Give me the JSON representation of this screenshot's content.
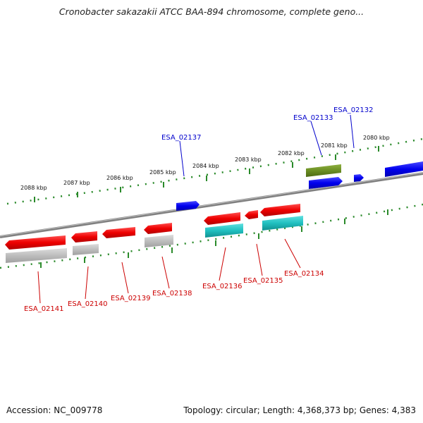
{
  "title": "Cronobacter sakazakii ATCC BAA-894 chromosome, complete geno...",
  "footer": {
    "accession": "Accession: NC_009778",
    "topology": "Topology: circular; Length: 4,368,373 bp; Genes: 4,383"
  },
  "colors": {
    "forward_gene": "#0000ee",
    "forward_label": "#0000cc",
    "reverse_gene": "#ee0000",
    "reverse_label": "#cc0000",
    "rna_gene": "#6b8e23",
    "cds_grey": "#bdbdbd",
    "cds_cyan": "#20c0c0",
    "tick": "#2a8a2a",
    "backbone": "#808080"
  },
  "scale": {
    "unit": "kbp",
    "labels": [
      "2088 kbp",
      "2087 kbp",
      "2086 kbp",
      "2085 kbp",
      "2084 kbp",
      "2083 kbp",
      "2082 kbp",
      "2081 kbp",
      "2080 kbp"
    ]
  },
  "genes_top": [
    {
      "label": "ESA_02137",
      "strand": "+"
    },
    {
      "label": "ESA_02133",
      "strand": "+"
    },
    {
      "label": "ESA_02132",
      "strand": "+"
    }
  ],
  "genes_bottom": [
    {
      "label": "ESA_02141",
      "strand": "-"
    },
    {
      "label": "ESA_02140",
      "strand": "-"
    },
    {
      "label": "ESA_02139",
      "strand": "-"
    },
    {
      "label": "ESA_02138",
      "strand": "-"
    },
    {
      "label": "ESA_02136",
      "strand": "-"
    },
    {
      "label": "ESA_02135",
      "strand": "-"
    },
    {
      "label": "ESA_02134",
      "strand": "-"
    }
  ]
}
